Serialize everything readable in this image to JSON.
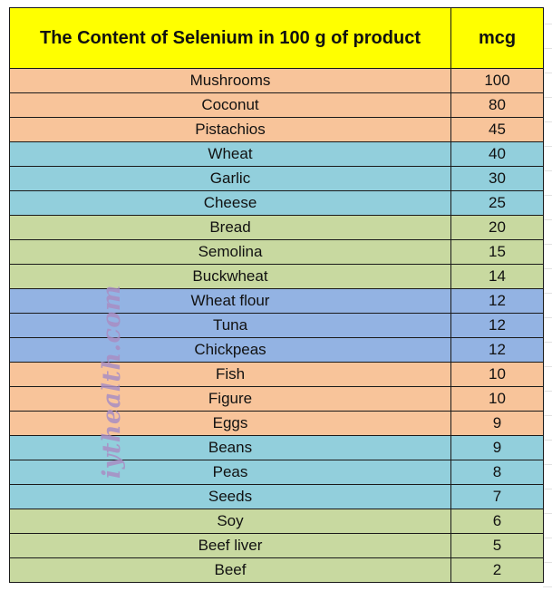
{
  "chart_data": {
    "type": "table",
    "columns": [
      "The Content of Selenium in 100 g of product",
      "mcg"
    ],
    "rows": [
      {
        "product": "Mushrooms",
        "value": "100",
        "color": "#f8c49a"
      },
      {
        "product": "Coconut",
        "value": "80",
        "color": "#f8c49a"
      },
      {
        "product": "Pistachios",
        "value": "45",
        "color": "#f8c49a"
      },
      {
        "product": "Wheat",
        "value": "40",
        "color": "#92cfdc"
      },
      {
        "product": "Garlic",
        "value": "30",
        "color": "#92cfdc"
      },
      {
        "product": "Cheese",
        "value": "25",
        "color": "#92cfdc"
      },
      {
        "product": "Bread",
        "value": "20",
        "color": "#c8d9a0"
      },
      {
        "product": "Semolina",
        "value": "15",
        "color": "#c8d9a0"
      },
      {
        "product": "Buckwheat",
        "value": "14",
        "color": "#c8d9a0"
      },
      {
        "product": "Wheat flour",
        "value": "12",
        "color": "#93b3e3"
      },
      {
        "product": "Tuna",
        "value": "12",
        "color": "#93b3e3"
      },
      {
        "product": "Chickpeas",
        "value": "12",
        "color": "#93b3e3"
      },
      {
        "product": "Fish",
        "value": "10",
        "color": "#f8c49a"
      },
      {
        "product": "Figure",
        "value": "10",
        "color": "#f8c49a"
      },
      {
        "product": "Eggs",
        "value": "9",
        "color": "#f8c49a"
      },
      {
        "product": "Beans",
        "value": "9",
        "color": "#92cfdc"
      },
      {
        "product": "Peas",
        "value": "8",
        "color": "#92cfdc"
      },
      {
        "product": "Seeds",
        "value": "7",
        "color": "#92cfdc"
      },
      {
        "product": "Soy",
        "value": "6",
        "color": "#c8d9a0"
      },
      {
        "product": "Beef liver",
        "value": "5",
        "color": "#c8d9a0"
      },
      {
        "product": "Beef",
        "value": "2",
        "color": "#c8d9a0"
      }
    ],
    "header_color": "#ffff00",
    "watermark": "iythealth.com"
  }
}
